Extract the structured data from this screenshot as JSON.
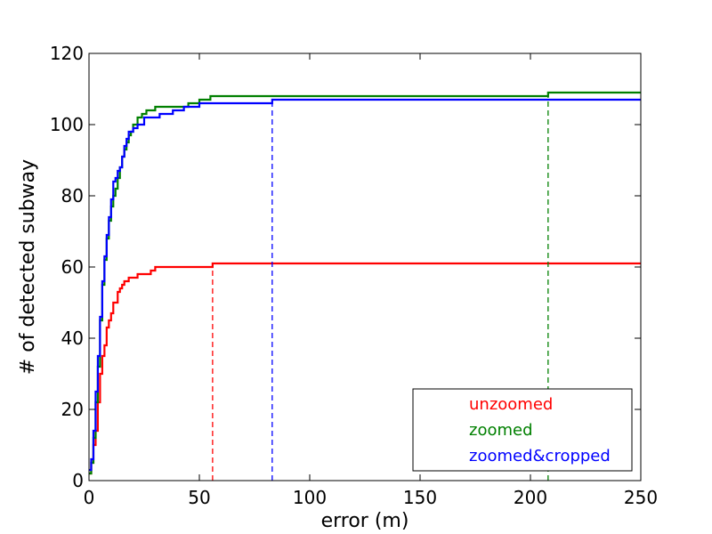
{
  "chart_data": {
    "type": "line",
    "title": "",
    "xlabel": "error (m)",
    "ylabel": "# of detected subway",
    "xlim": [
      0,
      250
    ],
    "ylim": [
      0,
      120
    ],
    "xticks": [
      0,
      50,
      100,
      150,
      200,
      250
    ],
    "yticks": [
      0,
      20,
      40,
      60,
      80,
      100,
      120
    ],
    "grid": false,
    "legend_position": "lower-right",
    "series": [
      {
        "name": "unzoomed",
        "color": "#ff0000",
        "step": true,
        "x": [
          0,
          1,
          2,
          3,
          4,
          5,
          6,
          7,
          8,
          9,
          10,
          11,
          12,
          13,
          14,
          15,
          16,
          18,
          20,
          22,
          25,
          28,
          30,
          35,
          40,
          45,
          50,
          56,
          250
        ],
        "y": [
          2,
          5,
          10,
          14,
          22,
          30,
          35,
          38,
          43,
          45,
          47,
          50,
          50,
          53,
          54,
          55,
          56,
          57,
          57,
          58,
          58,
          59,
          60,
          60,
          60,
          60,
          60,
          61,
          61
        ],
        "cutoff_x": 56
      },
      {
        "name": "zoomed",
        "color": "#008000",
        "step": true,
        "x": [
          0,
          1,
          2,
          3,
          4,
          5,
          6,
          7,
          8,
          9,
          10,
          11,
          12,
          13,
          14,
          15,
          16,
          17,
          18,
          19,
          20,
          22,
          24,
          26,
          28,
          30,
          35,
          40,
          45,
          50,
          55,
          60,
          100,
          150,
          208,
          250
        ],
        "y": [
          2,
          5,
          12,
          22,
          32,
          45,
          55,
          62,
          68,
          73,
          77,
          80,
          82,
          85,
          88,
          91,
          93,
          95,
          97,
          98,
          100,
          102,
          103,
          104,
          104,
          105,
          105,
          105,
          106,
          107,
          108,
          108,
          108,
          108,
          109,
          109
        ],
        "cutoff_x": 208
      },
      {
        "name": "zoomed&cropped",
        "color": "#0000ff",
        "step": true,
        "x": [
          0,
          1,
          2,
          3,
          4,
          5,
          6,
          7,
          8,
          9,
          10,
          11,
          12,
          13,
          14,
          15,
          16,
          17,
          18,
          19,
          20,
          22,
          25,
          28,
          32,
          38,
          43,
          50,
          60,
          70,
          83,
          100,
          150,
          200,
          250
        ],
        "y": [
          3,
          6,
          14,
          25,
          35,
          46,
          56,
          63,
          69,
          74,
          79,
          84,
          85,
          87,
          88,
          91,
          94,
          96,
          98,
          98,
          99,
          100,
          102,
          102,
          103,
          104,
          105,
          106,
          106,
          106,
          107,
          107,
          107,
          107,
          107
        ],
        "cutoff_x": 83
      }
    ]
  }
}
